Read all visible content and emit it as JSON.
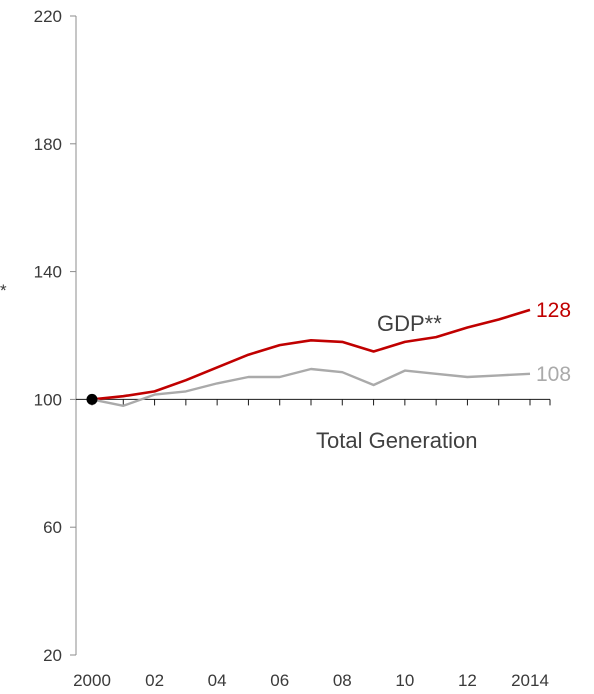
{
  "chart_data": {
    "type": "line",
    "x": [
      2000,
      2001,
      2002,
      2003,
      2004,
      2005,
      2006,
      2007,
      2008,
      2009,
      2010,
      2011,
      2012,
      2013,
      2014
    ],
    "x_tick_labels": [
      "2000",
      "02",
      "04",
      "06",
      "08",
      "10",
      "12",
      "2014"
    ],
    "x_tick_values": [
      2000,
      2002,
      2004,
      2006,
      2008,
      2010,
      2012,
      2014
    ],
    "y_ticks": [
      20,
      60,
      100,
      140,
      180,
      220
    ],
    "ylim": [
      20,
      220
    ],
    "xlim": [
      2000,
      2014
    ],
    "axis_cut_label": "*",
    "base_point": {
      "x": 2000,
      "y": 100
    },
    "series": [
      {
        "name": "GDP**",
        "color": "#c00000",
        "end_label": "128",
        "values": [
          100,
          101,
          102.5,
          106,
          110,
          114,
          117,
          118.5,
          118,
          115,
          118,
          119.5,
          122.5,
          125,
          128
        ]
      },
      {
        "name": "Total Generation",
        "color": "#aaaaaa",
        "end_label": "108",
        "values": [
          100,
          98,
          101.5,
          102.5,
          105,
          107,
          107,
          109.5,
          108.5,
          104.5,
          109,
          108,
          107,
          107.5,
          108
        ]
      }
    ],
    "colors": {
      "axis": "#8c8c8c",
      "tick_text": "#3a3a3a",
      "label_text": "#404040",
      "marker": "#000000"
    }
  }
}
